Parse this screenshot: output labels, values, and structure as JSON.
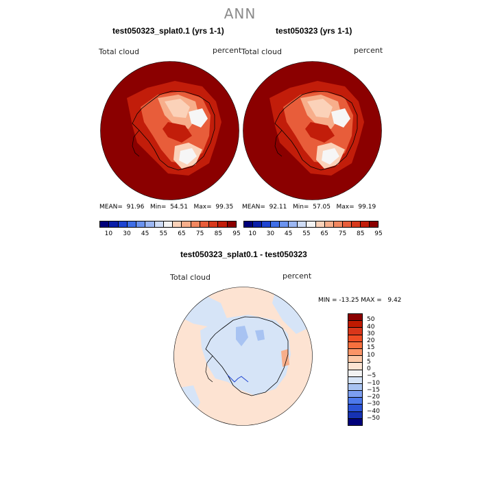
{
  "title": "ANN",
  "panels": [
    {
      "title": "test050323_splat0.1 (yrs 1-1)",
      "variable": "Total cloud",
      "units": "percent",
      "stats": "MEAN=  91.96   Min=  54.51   Max=  99.35"
    },
    {
      "title": "test050323 (yrs 1-1)",
      "variable": "Total cloud",
      "units": "percent",
      "stats": "MEAN=  92.11   Min=  57.05   Max=  99.19"
    }
  ],
  "colorbar_top": {
    "colors": [
      "#00007a",
      "#0a1ea8",
      "#1f44d1",
      "#3f6ee6",
      "#6b93ef",
      "#9cb7f3",
      "#cfdcf6",
      "#f3f3f3",
      "#fbd2b9",
      "#f7ae8b",
      "#f18760",
      "#e85d3a",
      "#d8391c",
      "#c21d0a",
      "#8b0000"
    ],
    "labels": [
      "10",
      "30",
      "45",
      "55",
      "65",
      "75",
      "85",
      "95"
    ]
  },
  "diff_panel": {
    "title": "test050323_splat0.1 - test050323",
    "variable": "Total cloud",
    "units": "percent",
    "minmax": "MIN = -13.25 MAX =   9.42"
  },
  "colorbar_diff": {
    "colors": [
      "#8b0000",
      "#c01a00",
      "#d9361a",
      "#ef4d24",
      "#f6703e",
      "#fa9467",
      "#fcc7a6",
      "#fde3d2",
      "#f2f2f2",
      "#d6e4f7",
      "#a8c3f2",
      "#7c9ef0",
      "#4d79ec",
      "#2b53d6",
      "#1632b3",
      "#00007a"
    ],
    "labels": [
      "50",
      "40",
      "30",
      "20",
      "15",
      "10",
      "5",
      "0",
      "−5",
      "−10",
      "−15",
      "−20",
      "−30",
      "−40",
      "−50"
    ]
  },
  "map_colors": {
    "ocean_dark_red": "#8b0000",
    "red": "#c21d0a",
    "orange_red": "#e85d3a",
    "salmon": "#f7ae8b",
    "pale_peach": "#fbd2b9",
    "white": "#f6f6f6",
    "diff_peach": "#fde3d2",
    "diff_blue": "#d6e4f7",
    "diff_mid_blue": "#a8c3f2"
  }
}
